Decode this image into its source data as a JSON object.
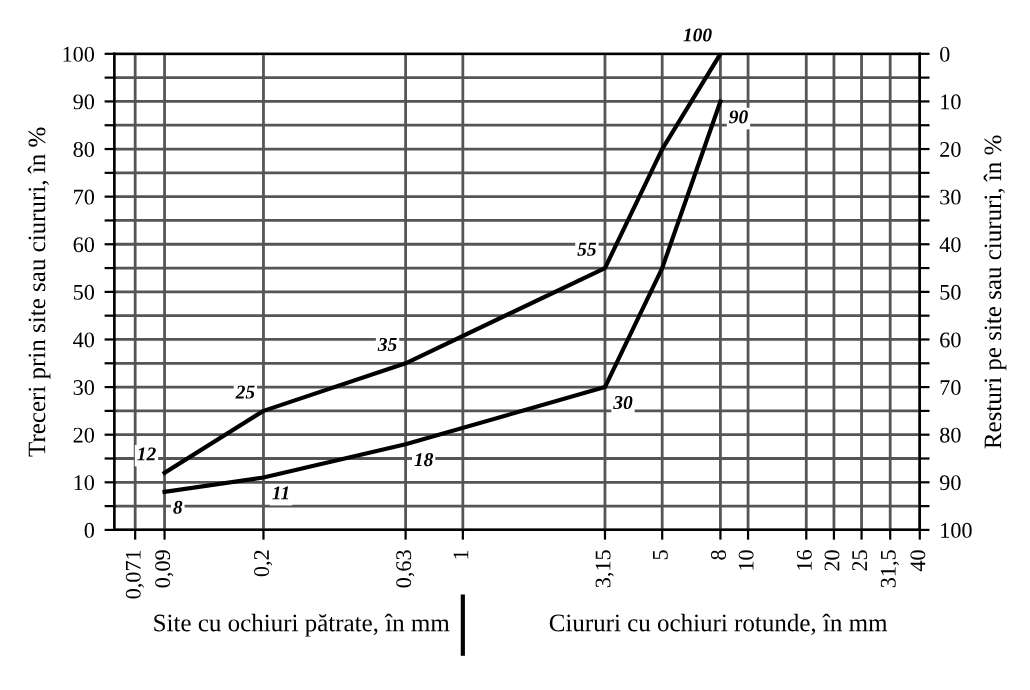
{
  "chart_data": {
    "type": "line",
    "ylabel": "Treceri prin site sau ciururi, în %",
    "y2label": "Resturi pe site sau ciururi, în %",
    "annotations": [
      "Site cu ochiuri pătrate, în mm",
      "Ciururi cu ochiuri rotunde, în mm"
    ],
    "log": "x",
    "xlim": [
      0.06,
      40
    ],
    "xticks": [
      {
        "value": 0.071,
        "label": "0,071"
      },
      {
        "value": 0.09,
        "label": "0,09"
      },
      {
        "value": 0.2,
        "label": "0,2"
      },
      {
        "value": 0.63,
        "label": "0,63"
      },
      1,
      {
        "value": 3.15,
        "label": "3,15"
      },
      5,
      8,
      10,
      16,
      20,
      25,
      {
        "value": 31.5,
        "label": "31,5"
      },
      40
    ],
    "ylim": [
      0,
      100
    ],
    "yticks": [
      0,
      {
        "value": 5,
        "label": null
      },
      10,
      {
        "value": 15,
        "label": null
      },
      20,
      {
        "value": 25,
        "label": null
      },
      30,
      {
        "value": 35,
        "label": null
      },
      40,
      {
        "value": 45,
        "label": null
      },
      50,
      {
        "value": 55,
        "label": null
      },
      60,
      {
        "value": 65,
        "label": null
      },
      70,
      {
        "value": 75,
        "label": null
      },
      80,
      {
        "value": 85,
        "label": null
      },
      90,
      {
        "value": 95,
        "label": null
      },
      100
    ],
    "y2lim": [
      100,
      0
    ],
    "y2ticks": [
      0,
      {
        "value": 5,
        "label": null
      },
      10,
      {
        "value": 15,
        "label": null
      },
      20,
      {
        "value": 25,
        "label": null
      },
      30,
      {
        "value": 35,
        "label": null
      },
      40,
      {
        "value": 45,
        "label": null
      },
      50,
      {
        "value": 55,
        "label": null
      },
      60,
      {
        "value": 65,
        "label": null
      },
      70,
      {
        "value": 75,
        "label": null
      },
      80,
      {
        "value": 85,
        "label": null
      },
      90,
      {
        "value": 95,
        "label": null
      },
      100
    ],
    "grid": true,
    "marker": "none",
    "line_style": "solid",
    "series": [
      {
        "color": "#000000",
        "x": [
          0.09,
          0.2,
          0.63,
          3.15,
          5,
          8
        ],
        "values": [
          12,
          25,
          35,
          55,
          80,
          100
        ],
        "value_labels": [
          "12",
          "25",
          "35",
          "55",
          null,
          "100"
        ]
      },
      {
        "color": "#000000",
        "x": [
          0.09,
          0.2,
          0.63,
          3.15,
          5,
          8
        ],
        "values": [
          8,
          11,
          18,
          30,
          55,
          90
        ],
        "value_labels": [
          "8",
          "11",
          "18",
          "30",
          null,
          "90"
        ]
      }
    ]
  }
}
